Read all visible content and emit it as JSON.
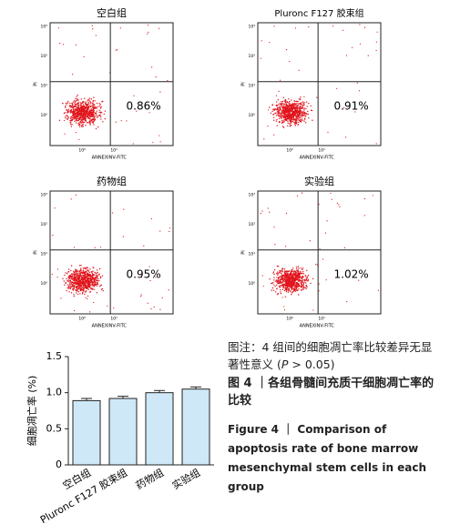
{
  "flow_panels": [
    {
      "title": "空白组",
      "percent": "0.86%",
      "x_label": "ANNEXINV-FITC",
      "y_label": "PI",
      "xticks": [
        "10⁰",
        "10¹"
      ],
      "yticks": [
        "10³",
        "10²",
        "10¹",
        "10⁰"
      ]
    },
    {
      "title": "Pluronc F127 胶束组",
      "percent": "0.91%",
      "x_label": "ANNEXINV-FITC",
      "y_label": "PI",
      "xticks": [
        "10⁰",
        "10¹"
      ],
      "yticks": [
        "10³",
        "10²",
        "10¹",
        "10⁰"
      ]
    },
    {
      "title": "药物组",
      "percent": "0.95%",
      "x_label": "ANNEXINV-FITC",
      "y_label": "PI",
      "xticks": [
        "10⁰",
        "10¹"
      ],
      "yticks": [
        "10³",
        "10²",
        "10¹",
        "10⁰"
      ]
    },
    {
      "title": "实验组",
      "percent": "1.02%",
      "x_label": "ANNEXINV-FITC",
      "y_label": "PI",
      "xticks": [
        "10⁰",
        "10¹"
      ],
      "yticks": [
        "10³",
        "10²",
        "10¹",
        "10⁰"
      ]
    }
  ],
  "chart_data": {
    "type": "bar",
    "y_label": "细胞凋亡率 (%)",
    "categories": [
      "空白组",
      "Pluronc F127 胶束组",
      "药物组",
      "实验组"
    ],
    "values": [
      0.89,
      0.92,
      1.0,
      1.05
    ],
    "errors": [
      0.03,
      0.03,
      0.03,
      0.03
    ],
    "color": "#cfe8f7",
    "ylim": [
      0,
      1.5
    ],
    "yticks": [
      0,
      {
        "value": 0.5,
        "label": "0.5"
      },
      {
        "value": 1,
        "label": "1.0"
      },
      {
        "value": 1.5,
        "label": "1.5"
      }
    ]
  },
  "caption": {
    "note_parts": [
      "图注：4 组间的细胞凋亡率比较差异无显著性意义 (",
      "P",
      " > 0.05)"
    ],
    "title_zh": "图 4 ｜各组骨髓间充质干细胞凋亡率的比较",
    "title_en": "Figure 4 ｜ Comparison of apoptosis rate of bone marrow mesenchymal stem cells in each group"
  }
}
